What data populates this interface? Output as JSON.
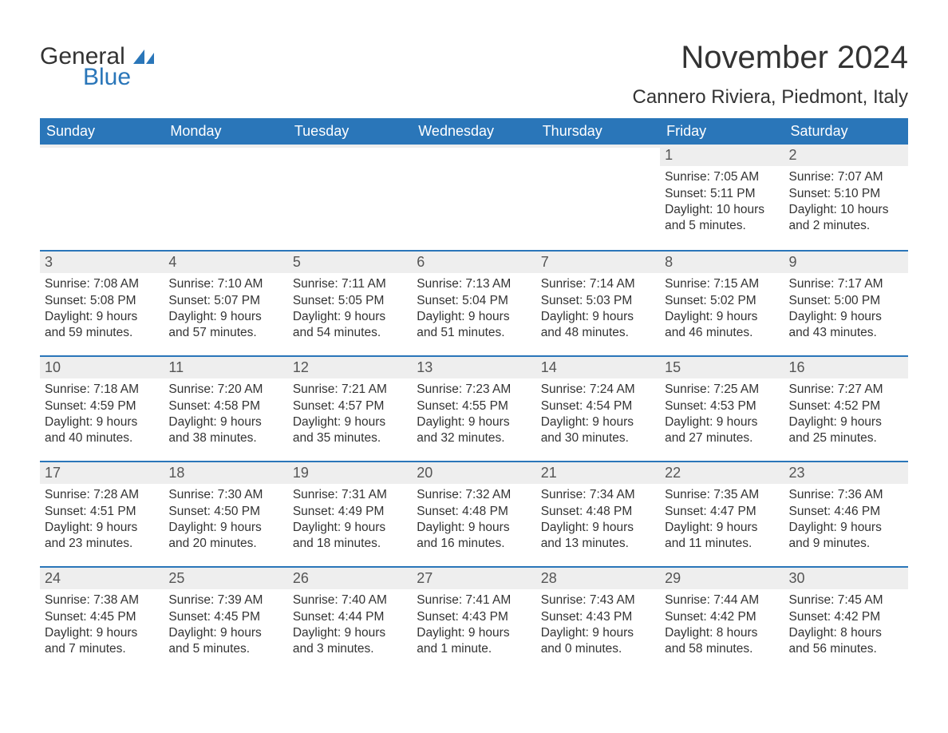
{
  "brand": {
    "word1": "General",
    "word2": "Blue",
    "color_primary": "#2a76b9",
    "color_text": "#333333"
  },
  "title": "November 2024",
  "location": "Cannero Riviera, Piedmont, Italy",
  "colors": {
    "header_bg": "#2a76b9",
    "header_text": "#ffffff",
    "daynum_bg": "#eeeeee",
    "week_border": "#2a76b9",
    "body_text": "#333333",
    "background": "#ffffff"
  },
  "weekdays": [
    "Sunday",
    "Monday",
    "Tuesday",
    "Wednesday",
    "Thursday",
    "Friday",
    "Saturday"
  ],
  "weeks": [
    [
      {
        "empty": true
      },
      {
        "empty": true
      },
      {
        "empty": true
      },
      {
        "empty": true
      },
      {
        "empty": true
      },
      {
        "day": "1",
        "sunrise": "Sunrise: 7:05 AM",
        "sunset": "Sunset: 5:11 PM",
        "daylight1": "Daylight: 10 hours",
        "daylight2": "and 5 minutes."
      },
      {
        "day": "2",
        "sunrise": "Sunrise: 7:07 AM",
        "sunset": "Sunset: 5:10 PM",
        "daylight1": "Daylight: 10 hours",
        "daylight2": "and 2 minutes."
      }
    ],
    [
      {
        "day": "3",
        "sunrise": "Sunrise: 7:08 AM",
        "sunset": "Sunset: 5:08 PM",
        "daylight1": "Daylight: 9 hours",
        "daylight2": "and 59 minutes."
      },
      {
        "day": "4",
        "sunrise": "Sunrise: 7:10 AM",
        "sunset": "Sunset: 5:07 PM",
        "daylight1": "Daylight: 9 hours",
        "daylight2": "and 57 minutes."
      },
      {
        "day": "5",
        "sunrise": "Sunrise: 7:11 AM",
        "sunset": "Sunset: 5:05 PM",
        "daylight1": "Daylight: 9 hours",
        "daylight2": "and 54 minutes."
      },
      {
        "day": "6",
        "sunrise": "Sunrise: 7:13 AM",
        "sunset": "Sunset: 5:04 PM",
        "daylight1": "Daylight: 9 hours",
        "daylight2": "and 51 minutes."
      },
      {
        "day": "7",
        "sunrise": "Sunrise: 7:14 AM",
        "sunset": "Sunset: 5:03 PM",
        "daylight1": "Daylight: 9 hours",
        "daylight2": "and 48 minutes."
      },
      {
        "day": "8",
        "sunrise": "Sunrise: 7:15 AM",
        "sunset": "Sunset: 5:02 PM",
        "daylight1": "Daylight: 9 hours",
        "daylight2": "and 46 minutes."
      },
      {
        "day": "9",
        "sunrise": "Sunrise: 7:17 AM",
        "sunset": "Sunset: 5:00 PM",
        "daylight1": "Daylight: 9 hours",
        "daylight2": "and 43 minutes."
      }
    ],
    [
      {
        "day": "10",
        "sunrise": "Sunrise: 7:18 AM",
        "sunset": "Sunset: 4:59 PM",
        "daylight1": "Daylight: 9 hours",
        "daylight2": "and 40 minutes."
      },
      {
        "day": "11",
        "sunrise": "Sunrise: 7:20 AM",
        "sunset": "Sunset: 4:58 PM",
        "daylight1": "Daylight: 9 hours",
        "daylight2": "and 38 minutes."
      },
      {
        "day": "12",
        "sunrise": "Sunrise: 7:21 AM",
        "sunset": "Sunset: 4:57 PM",
        "daylight1": "Daylight: 9 hours",
        "daylight2": "and 35 minutes."
      },
      {
        "day": "13",
        "sunrise": "Sunrise: 7:23 AM",
        "sunset": "Sunset: 4:55 PM",
        "daylight1": "Daylight: 9 hours",
        "daylight2": "and 32 minutes."
      },
      {
        "day": "14",
        "sunrise": "Sunrise: 7:24 AM",
        "sunset": "Sunset: 4:54 PM",
        "daylight1": "Daylight: 9 hours",
        "daylight2": "and 30 minutes."
      },
      {
        "day": "15",
        "sunrise": "Sunrise: 7:25 AM",
        "sunset": "Sunset: 4:53 PM",
        "daylight1": "Daylight: 9 hours",
        "daylight2": "and 27 minutes."
      },
      {
        "day": "16",
        "sunrise": "Sunrise: 7:27 AM",
        "sunset": "Sunset: 4:52 PM",
        "daylight1": "Daylight: 9 hours",
        "daylight2": "and 25 minutes."
      }
    ],
    [
      {
        "day": "17",
        "sunrise": "Sunrise: 7:28 AM",
        "sunset": "Sunset: 4:51 PM",
        "daylight1": "Daylight: 9 hours",
        "daylight2": "and 23 minutes."
      },
      {
        "day": "18",
        "sunrise": "Sunrise: 7:30 AM",
        "sunset": "Sunset: 4:50 PM",
        "daylight1": "Daylight: 9 hours",
        "daylight2": "and 20 minutes."
      },
      {
        "day": "19",
        "sunrise": "Sunrise: 7:31 AM",
        "sunset": "Sunset: 4:49 PM",
        "daylight1": "Daylight: 9 hours",
        "daylight2": "and 18 minutes."
      },
      {
        "day": "20",
        "sunrise": "Sunrise: 7:32 AM",
        "sunset": "Sunset: 4:48 PM",
        "daylight1": "Daylight: 9 hours",
        "daylight2": "and 16 minutes."
      },
      {
        "day": "21",
        "sunrise": "Sunrise: 7:34 AM",
        "sunset": "Sunset: 4:48 PM",
        "daylight1": "Daylight: 9 hours",
        "daylight2": "and 13 minutes."
      },
      {
        "day": "22",
        "sunrise": "Sunrise: 7:35 AM",
        "sunset": "Sunset: 4:47 PM",
        "daylight1": "Daylight: 9 hours",
        "daylight2": "and 11 minutes."
      },
      {
        "day": "23",
        "sunrise": "Sunrise: 7:36 AM",
        "sunset": "Sunset: 4:46 PM",
        "daylight1": "Daylight: 9 hours",
        "daylight2": "and 9 minutes."
      }
    ],
    [
      {
        "day": "24",
        "sunrise": "Sunrise: 7:38 AM",
        "sunset": "Sunset: 4:45 PM",
        "daylight1": "Daylight: 9 hours",
        "daylight2": "and 7 minutes."
      },
      {
        "day": "25",
        "sunrise": "Sunrise: 7:39 AM",
        "sunset": "Sunset: 4:45 PM",
        "daylight1": "Daylight: 9 hours",
        "daylight2": "and 5 minutes."
      },
      {
        "day": "26",
        "sunrise": "Sunrise: 7:40 AM",
        "sunset": "Sunset: 4:44 PM",
        "daylight1": "Daylight: 9 hours",
        "daylight2": "and 3 minutes."
      },
      {
        "day": "27",
        "sunrise": "Sunrise: 7:41 AM",
        "sunset": "Sunset: 4:43 PM",
        "daylight1": "Daylight: 9 hours",
        "daylight2": "and 1 minute."
      },
      {
        "day": "28",
        "sunrise": "Sunrise: 7:43 AM",
        "sunset": "Sunset: 4:43 PM",
        "daylight1": "Daylight: 9 hours",
        "daylight2": "and 0 minutes."
      },
      {
        "day": "29",
        "sunrise": "Sunrise: 7:44 AM",
        "sunset": "Sunset: 4:42 PM",
        "daylight1": "Daylight: 8 hours",
        "daylight2": "and 58 minutes."
      },
      {
        "day": "30",
        "sunrise": "Sunrise: 7:45 AM",
        "sunset": "Sunset: 4:42 PM",
        "daylight1": "Daylight: 8 hours",
        "daylight2": "and 56 minutes."
      }
    ]
  ]
}
